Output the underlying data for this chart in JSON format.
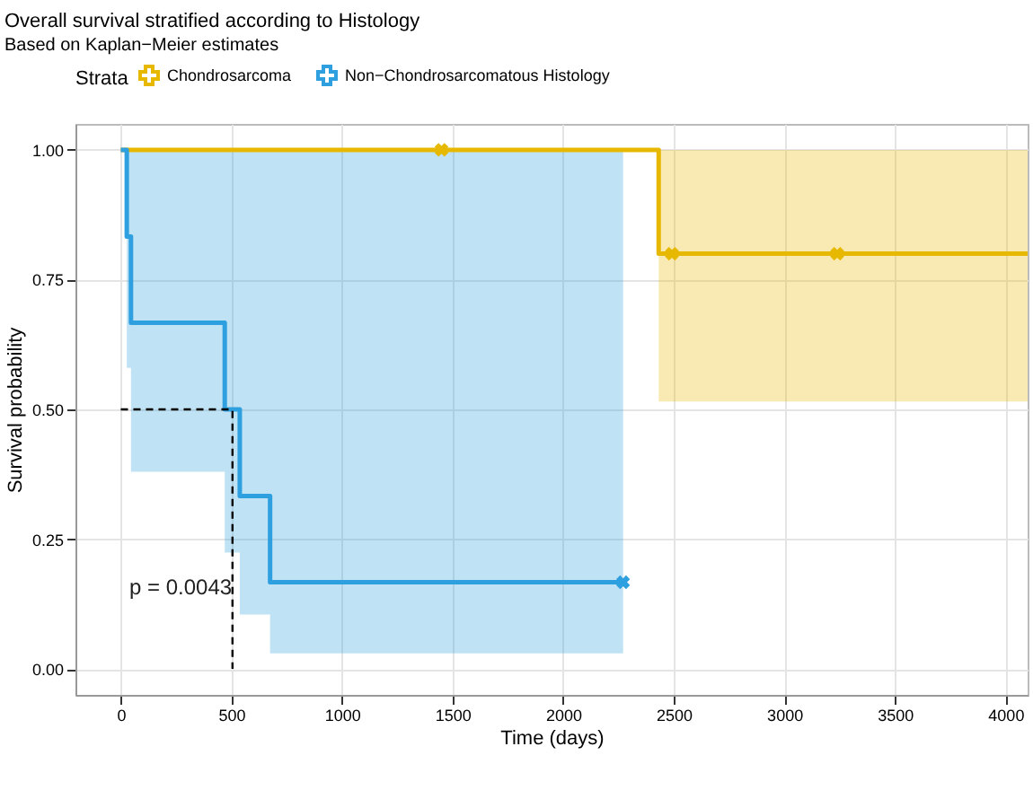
{
  "chart_data": {
    "type": "step",
    "title": "Overall survival stratified according to Histology",
    "subtitle": "Based on Kaplan−Meier estimates",
    "xlabel": "Time (days)",
    "ylabel": "Survival probability",
    "legend_title": "Strata",
    "legend": "top",
    "grid": true,
    "xlim": [
      -205,
      4100
    ],
    "xticks": [
      0,
      500,
      1000,
      1500,
      2000,
      2500,
      3000,
      3500,
      4000
    ],
    "ylim": [
      -0.05,
      1.05
    ],
    "yticks": [
      {
        "value": 0,
        "label": "0.00"
      },
      {
        "value": 0.25,
        "label": "0.25"
      },
      {
        "value": 0.5,
        "label": "0.50"
      },
      {
        "value": 0.75,
        "label": "0.75"
      },
      {
        "value": 1,
        "label": "1.00"
      }
    ],
    "annotations": [
      "p = 0.0043"
    ],
    "series": [
      {
        "name": "Chondrosarcoma",
        "color": "#e7b800",
        "x": [
          0,
          2432,
          4100
        ],
        "values": [
          1,
          0.8,
          0.8
        ],
        "lower": [
          1,
          0.515,
          0.515
        ],
        "upper": [
          1,
          1,
          1
        ]
      },
      {
        "name": "Non−Chondrosarcomatous Histology",
        "color": "#2e9fdf",
        "x": [
          0,
          27,
          46,
          470,
          538,
          675,
          2271
        ],
        "values": [
          1,
          0.833,
          0.667,
          0.5,
          0.333,
          0.167,
          0.167
        ],
        "lower": [
          1,
          0.58,
          0.38,
          0.224,
          0.105,
          0.03,
          0.03
        ],
        "upper": [
          1,
          1,
          1,
          1,
          1,
          1,
          1
        ]
      },
      {
        "type": "scatter",
        "marker": "cross",
        "color": "#e7b800",
        "x": [
          1450,
          2492,
          3239
        ],
        "values": [
          1,
          0.8,
          0.8
        ]
      },
      {
        "type": "scatter",
        "marker": "cross",
        "color": "#2e9fdf",
        "x": [
          2271
        ],
        "values": [
          0.167
        ]
      },
      {
        "type": "line",
        "line_style": "dashed",
        "color": "#000000",
        "x": [
          0,
          505,
          505
        ],
        "values": [
          0.5,
          0.5,
          0
        ]
      }
    ]
  }
}
